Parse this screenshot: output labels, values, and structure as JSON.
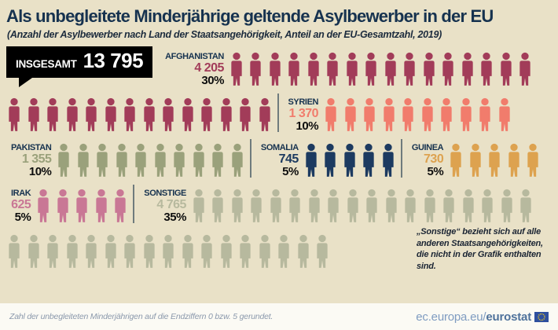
{
  "header": {
    "title": "Als unbegleitete Minderjährige geltende Asylbewerber in der EU",
    "subtitle": "(Anzahl der Asylbewerber nach Land der Staatsangehörigkeit, Anteil an der EU-Gesamtzahl, 2019)"
  },
  "total": {
    "label": "INSGESAMT",
    "value": "13 795"
  },
  "groups": {
    "afghanistan": {
      "name": "AFGHANISTAN",
      "value": "4 205",
      "percent": "30%",
      "color": "#a23c59"
    },
    "syrien": {
      "name": "SYRIEN",
      "value": "1 370",
      "percent": "10%",
      "color": "#f17c6c"
    },
    "pakistan": {
      "name": "PAKISTAN",
      "value": "1 355",
      "percent": "10%",
      "color": "#9aa17b"
    },
    "somalia": {
      "name": "SOMALIA",
      "value": "745",
      "percent": "5%",
      "color": "#1c3a60"
    },
    "guinea": {
      "name": "GUINEA",
      "value": "730",
      "percent": "5%",
      "color": "#dda24f"
    },
    "irak": {
      "name": "IRAK",
      "value": "625",
      "percent": "5%",
      "color": "#c97795"
    },
    "sonstige": {
      "name": "SONSTIGE",
      "value": "4 765",
      "percent": "35%",
      "color": "#b7b99e"
    }
  },
  "note": "„Sonstige“ bezieht sich auf alle anderen Staatsangehörigkeiten, die nicht in der Grafik enthalten sind.",
  "footer": {
    "note": "Zahl der unbegleiteten Minderjährigen auf die Endziffern 0 bzw. 5 gerundet.",
    "site_prefix": "ec.europa.eu/",
    "site_bold": "eurostat"
  },
  "chart_data": {
    "type": "pictogram",
    "title": "Als unbegleitete Minderjährige geltende Asylbewerber in der EU",
    "subtitle": "(Anzahl der Asylbewerber nach Land der Staatsangehörigkeit, Anteil an der EU-Gesamtzahl, 2019)",
    "year": "2019",
    "total_label": "INSGESAMT",
    "total_value": 13795,
    "icon_represents_percent": 1,
    "categories": [
      "Afghanistan",
      "Syrien",
      "Pakistan",
      "Somalia",
      "Guinea",
      "Irak",
      "Sonstige"
    ],
    "values": [
      4205,
      1370,
      1355,
      745,
      730,
      625,
      4765
    ],
    "percents": [
      30,
      10,
      10,
      5,
      5,
      5,
      35
    ],
    "colors": [
      "#a23c59",
      "#f17c6c",
      "#9aa17b",
      "#1c3a60",
      "#dda24f",
      "#c97795",
      "#b7b99e"
    ],
    "rows": [
      {
        "segments": [
          {
            "type": "total"
          },
          {
            "type": "label",
            "group": "afghanistan"
          },
          {
            "type": "icons",
            "group": "afghanistan",
            "count": 16
          }
        ]
      },
      {
        "segments": [
          {
            "type": "icons",
            "group": "afghanistan",
            "count": 14
          },
          {
            "type": "divider"
          },
          {
            "type": "label",
            "group": "syrien"
          },
          {
            "type": "icons",
            "group": "syrien",
            "count": 10
          }
        ]
      },
      {
        "segments": [
          {
            "type": "label",
            "group": "pakistan"
          },
          {
            "type": "icons",
            "group": "pakistan",
            "count": 10
          },
          {
            "type": "divider"
          },
          {
            "type": "label",
            "group": "somalia"
          },
          {
            "type": "icons",
            "group": "somalia",
            "count": 5
          },
          {
            "type": "divider"
          },
          {
            "type": "label",
            "group": "guinea"
          },
          {
            "type": "icons",
            "group": "guinea",
            "count": 5
          }
        ]
      },
      {
        "segments": [
          {
            "type": "label",
            "group": "irak"
          },
          {
            "type": "icons",
            "group": "irak",
            "count": 5
          },
          {
            "type": "divider"
          },
          {
            "type": "label",
            "group": "sonstige"
          },
          {
            "type": "icons",
            "group": "sonstige",
            "count": 18
          }
        ]
      },
      {
        "segments": [
          {
            "type": "icons",
            "group": "sonstige",
            "count": 17
          },
          {
            "type": "note"
          }
        ]
      }
    ]
  }
}
